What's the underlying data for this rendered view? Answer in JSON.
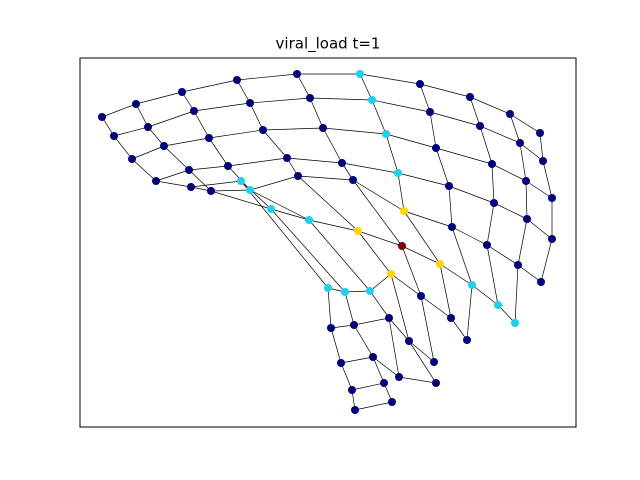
{
  "title": "viral_load t=1"
}
